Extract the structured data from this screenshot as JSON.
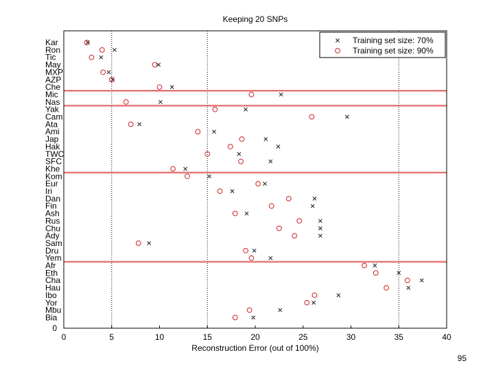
{
  "page": {
    "number": "95"
  },
  "chart_data": {
    "type": "scatter",
    "title": "Keeping 20 SNPs",
    "xlabel": "Reconstruction Error (out of 100%)",
    "ylabel": "",
    "xlim": [
      0,
      40
    ],
    "xticks": [
      "0",
      "5",
      "10",
      "15",
      "20",
      "25",
      "30",
      "35",
      "40"
    ],
    "x_ref_lines": [
      5,
      15,
      35
    ],
    "grid": false,
    "legend_position": "top-right",
    "y_tick_bottom": "0",
    "categories": [
      "Kar",
      "Ron",
      "Tic",
      "May",
      "MXP",
      "AZP",
      "Che",
      "Mic",
      "Nas",
      "Yak",
      "Cam",
      "Ata",
      "Ami",
      "Jap",
      "Hak",
      "TWC",
      "SFC",
      "Khe",
      "Kom",
      "Eur",
      "Iri",
      "Dan",
      "Fin",
      "Ash",
      "Rus",
      "Chu",
      "Ady",
      "Sam",
      "Dru",
      "Yem",
      "Afr",
      "Eth",
      "Cha",
      "Hau",
      "Ibo",
      "Yor",
      "Mbu",
      "Bia"
    ],
    "group_separators_after": [
      "Che",
      "Nas",
      "Khe",
      "Yem"
    ],
    "series": [
      {
        "name": "Training set size: 70%",
        "marker": "x",
        "color": "#1a1a1a",
        "values": [
          2.5,
          5.3,
          3.9,
          9.9,
          4.7,
          5.1,
          11.3,
          22.7,
          10.1,
          19.0,
          29.6,
          7.9,
          15.7,
          21.1,
          22.4,
          18.3,
          21.6,
          12.7,
          15.2,
          21.0,
          17.6,
          26.2,
          26.0,
          19.1,
          26.8,
          26.8,
          26.8,
          8.9,
          19.9,
          21.6,
          32.5,
          35.0,
          37.4,
          36.0,
          28.7,
          26.1,
          22.6,
          19.8
        ]
      },
      {
        "name": "Training set size: 90%",
        "marker": "o",
        "color": "#cc2222",
        "values": [
          2.4,
          4.0,
          2.9,
          9.5,
          4.1,
          5.0,
          10.0,
          19.6,
          6.5,
          15.8,
          25.9,
          7.0,
          14.0,
          18.6,
          17.4,
          15.0,
          18.5,
          11.4,
          12.9,
          20.3,
          16.3,
          23.5,
          21.7,
          17.9,
          24.6,
          22.5,
          24.1,
          7.8,
          19.0,
          19.6,
          31.4,
          32.6,
          35.9,
          33.7,
          26.2,
          25.4,
          19.4,
          17.9
        ]
      }
    ]
  }
}
